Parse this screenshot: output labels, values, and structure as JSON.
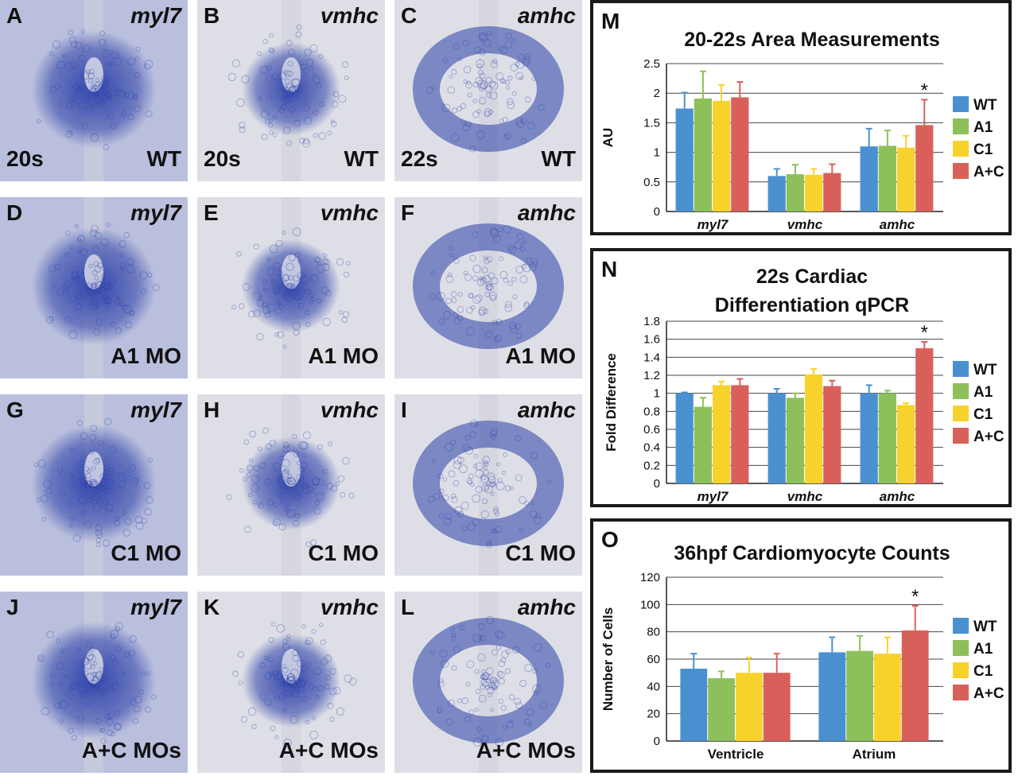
{
  "panels": [
    {
      "label": "A",
      "gene": "myl7",
      "stage": "20s",
      "condition": "WT"
    },
    {
      "label": "B",
      "gene": "vmhc",
      "stage": "20s",
      "condition": "WT"
    },
    {
      "label": "C",
      "gene": "amhc",
      "stage": "22s",
      "condition": "WT"
    },
    {
      "label": "D",
      "gene": "myl7",
      "stage": "",
      "condition": "A1 MO"
    },
    {
      "label": "E",
      "gene": "vmhc",
      "stage": "",
      "condition": "A1 MO"
    },
    {
      "label": "F",
      "gene": "amhc",
      "stage": "",
      "condition": "A1 MO"
    },
    {
      "label": "G",
      "gene": "myl7",
      "stage": "",
      "condition": "C1 MO"
    },
    {
      "label": "H",
      "gene": "vmhc",
      "stage": "",
      "condition": "C1 MO"
    },
    {
      "label": "I",
      "gene": "amhc",
      "stage": "",
      "condition": "C1 MO"
    },
    {
      "label": "J",
      "gene": "myl7",
      "stage": "",
      "condition": "A+C MOs"
    },
    {
      "label": "K",
      "gene": "vmhc",
      "stage": "",
      "condition": "A+C MOs"
    },
    {
      "label": "L",
      "gene": "amhc",
      "stage": "",
      "condition": "A+C MOs"
    }
  ],
  "colors": {
    "WT": "#4a90d0",
    "A1": "#8dc05a",
    "C1": "#f8d22c",
    "A+C": "#d9605a",
    "stain": "#2b3fa8"
  },
  "chart_data": [
    {
      "label": "M",
      "type": "bar",
      "title": "20-22s Area Measurements",
      "ylabel": "AU",
      "categories": [
        "myl7",
        "vmhc",
        "amhc"
      ],
      "category_italic": true,
      "ylim": [
        0,
        2.5
      ],
      "yticks": [
        "0",
        "0.5",
        "1",
        "1.5",
        "2",
        "2.5"
      ],
      "series": [
        {
          "name": "WT",
          "values": [
            1.74,
            0.6,
            1.1
          ],
          "errors": [
            0.27,
            0.12,
            0.3
          ]
        },
        {
          "name": "A1",
          "values": [
            1.91,
            0.63,
            1.11
          ],
          "errors": [
            0.46,
            0.16,
            0.26
          ]
        },
        {
          "name": "C1",
          "values": [
            1.87,
            0.62,
            1.08
          ],
          "errors": [
            0.27,
            0.1,
            0.2
          ]
        },
        {
          "name": "A+C",
          "values": [
            1.93,
            0.65,
            1.46
          ],
          "errors": [
            0.26,
            0.15,
            0.43
          ]
        }
      ],
      "significance": [
        {
          "category": "amhc",
          "series": "A+C",
          "mark": "*"
        }
      ]
    },
    {
      "label": "N",
      "type": "bar",
      "title": [
        "22s Cardiac",
        "Differentiation qPCR"
      ],
      "ylabel": "Fold Difference",
      "categories": [
        "myl7",
        "vmhc",
        "amhc"
      ],
      "category_italic": true,
      "ylim": [
        0,
        1.8
      ],
      "yticks": [
        "0",
        "0.2",
        "0.4",
        "0.6",
        "0.8",
        "1",
        "1.2",
        "1.4",
        "1.6",
        "1.8"
      ],
      "series": [
        {
          "name": "WT",
          "values": [
            1.0,
            1.0,
            1.0
          ],
          "errors": [
            0.01,
            0.05,
            0.09
          ]
        },
        {
          "name": "A1",
          "values": [
            0.85,
            0.95,
            1.0
          ],
          "errors": [
            0.1,
            0.05,
            0.03
          ]
        },
        {
          "name": "C1",
          "values": [
            1.09,
            1.21,
            0.87
          ],
          "errors": [
            0.04,
            0.06,
            0.02
          ]
        },
        {
          "name": "A+C",
          "values": [
            1.09,
            1.08,
            1.5
          ],
          "errors": [
            0.07,
            0.06,
            0.07
          ]
        }
      ],
      "significance": [
        {
          "category": "amhc",
          "series": "A+C",
          "mark": "*"
        }
      ]
    },
    {
      "label": "O",
      "type": "bar",
      "title": "36hpf Cardiomyocyte Counts",
      "ylabel": "Number of Cells",
      "categories": [
        "Ventricle",
        "Atrium"
      ],
      "category_italic": false,
      "ylim": [
        0,
        120
      ],
      "yticks": [
        "0",
        "20",
        "40",
        "60",
        "80",
        "100",
        "120"
      ],
      "series": [
        {
          "name": "WT",
          "values": [
            53,
            65
          ],
          "errors": [
            11,
            11
          ]
        },
        {
          "name": "A1",
          "values": [
            46,
            66
          ],
          "errors": [
            5,
            11
          ]
        },
        {
          "name": "C1",
          "values": [
            50,
            64
          ],
          "errors": [
            11,
            12
          ]
        },
        {
          "name": "A+C",
          "values": [
            50,
            81
          ],
          "errors": [
            14,
            18
          ]
        }
      ],
      "significance": [
        {
          "category": "Atrium",
          "series": "A+C",
          "mark": "*"
        }
      ]
    }
  ]
}
